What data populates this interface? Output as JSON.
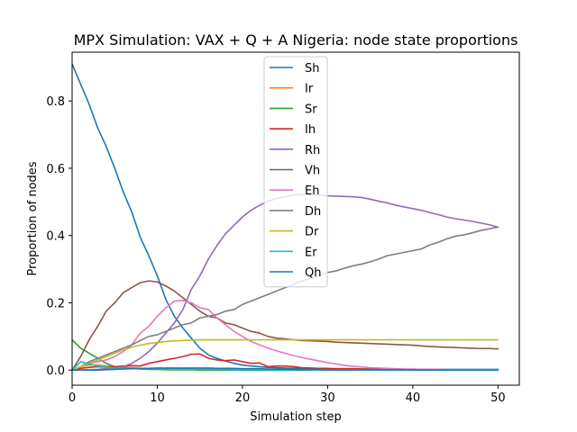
{
  "chart_data": {
    "type": "line",
    "title": "MPX Simulation: VAX + Q + A Nigeria: node state proportions",
    "xlabel": "Simulation step",
    "ylabel": "Proportion of nodes",
    "xlim": [
      0,
      52.5
    ],
    "ylim": [
      -0.045,
      0.945
    ],
    "xticks": [
      0,
      10,
      20,
      30,
      40,
      50
    ],
    "yticks": [
      0.0,
      0.2,
      0.4,
      0.6,
      0.8
    ],
    "xtick_labels": [
      "0",
      "10",
      "20",
      "30",
      "40",
      "50"
    ],
    "ytick_labels": [
      "0.0",
      "0.2",
      "0.4",
      "0.6",
      "0.8"
    ],
    "grid": false,
    "legend_position": "upper-center",
    "x": [
      0,
      1,
      2,
      3,
      4,
      5,
      6,
      7,
      8,
      9,
      10,
      11,
      12,
      13,
      14,
      15,
      16,
      17,
      18,
      19,
      20,
      21,
      22,
      23,
      24,
      25,
      26,
      27,
      28,
      29,
      30,
      31,
      32,
      33,
      34,
      35,
      36,
      37,
      38,
      39,
      40,
      41,
      42,
      43,
      44,
      45,
      46,
      47,
      48,
      49,
      50
    ],
    "series": [
      {
        "name": "Sh",
        "color": "#1f77b4",
        "values": [
          0.91,
          0.85,
          0.79,
          0.72,
          0.665,
          0.6,
          0.53,
          0.47,
          0.395,
          0.34,
          0.28,
          0.21,
          0.16,
          0.125,
          0.095,
          0.065,
          0.045,
          0.035,
          0.027,
          0.02,
          0.015,
          0.012,
          0.01,
          0.008,
          0.007,
          0.006,
          0.005,
          0.005,
          0.004,
          0.004,
          0.004,
          0.003,
          0.003,
          0.003,
          0.003,
          0.003,
          0.003,
          0.003,
          0.002,
          0.002,
          0.002,
          0.002,
          0.002,
          0.002,
          0.002,
          0.002,
          0.002,
          0.002,
          0.002,
          0.002,
          0.002
        ]
      },
      {
        "name": "Ir",
        "color": "#ff7f0e",
        "values": [
          0.0,
          0.01,
          0.015,
          0.015,
          0.012,
          0.01,
          0.008,
          0.007,
          0.005,
          0.004,
          0.004,
          0.003,
          0.003,
          0.002,
          0.002,
          0.002,
          0.002,
          0.001,
          0.001,
          0.001,
          0.001,
          0.001,
          0.001,
          0.001,
          0.001,
          0.0,
          0.0,
          0.0,
          0.0,
          0.0,
          0.0,
          0.0,
          0.0,
          0.0,
          0.0,
          0.0,
          0.0,
          0.0,
          0.0,
          0.0,
          0.0,
          0.0,
          0.0,
          0.0,
          0.0,
          0.0,
          0.0,
          0.0,
          0.0,
          0.0,
          0.0
        ]
      },
      {
        "name": "Sr",
        "color": "#2ca02c",
        "values": [
          0.09,
          0.065,
          0.05,
          0.035,
          0.02,
          0.01,
          0.007,
          0.005,
          0.003,
          0.002,
          0.002,
          0.001,
          0.001,
          0.001,
          0.001,
          0.0,
          0.0,
          0.0,
          0.0,
          0.0,
          0.0,
          0.0,
          0.0,
          0.0,
          0.0,
          0.0,
          0.0,
          0.0,
          0.0,
          0.0,
          0.0,
          0.0,
          0.0,
          0.0,
          0.0,
          0.0,
          0.0,
          0.0,
          0.0,
          0.0,
          0.0,
          0.0,
          0.0,
          0.0,
          0.0,
          0.0,
          0.0,
          0.0,
          0.0,
          0.0,
          0.0
        ]
      },
      {
        "name": "Ih",
        "color": "#d62728",
        "values": [
          0.0,
          0.005,
          0.008,
          0.01,
          0.008,
          0.01,
          0.012,
          0.013,
          0.012,
          0.02,
          0.025,
          0.03,
          0.035,
          0.04,
          0.047,
          0.048,
          0.035,
          0.03,
          0.028,
          0.03,
          0.025,
          0.02,
          0.021,
          0.01,
          0.012,
          0.012,
          0.01,
          0.007,
          0.006,
          0.005,
          0.005,
          0.004,
          0.004,
          0.004,
          0.003,
          0.003,
          0.003,
          0.002,
          0.002,
          0.002,
          0.002,
          0.002,
          0.002,
          0.001,
          0.001,
          0.001,
          0.001,
          0.001,
          0.001,
          0.001,
          0.001
        ]
      },
      {
        "name": "Rh",
        "color": "#9467bd",
        "values": [
          0.0,
          0.0,
          0.001,
          0.002,
          0.004,
          0.006,
          0.01,
          0.02,
          0.035,
          0.055,
          0.08,
          0.11,
          0.14,
          0.18,
          0.24,
          0.28,
          0.33,
          0.37,
          0.405,
          0.43,
          0.455,
          0.475,
          0.49,
          0.502,
          0.51,
          0.515,
          0.52,
          0.522,
          0.521,
          0.52,
          0.518,
          0.517,
          0.516,
          0.515,
          0.513,
          0.508,
          0.502,
          0.497,
          0.49,
          0.485,
          0.48,
          0.475,
          0.468,
          0.462,
          0.455,
          0.45,
          0.446,
          0.442,
          0.437,
          0.432,
          0.425
        ]
      },
      {
        "name": "Vh",
        "color": "#8c564b",
        "values": [
          0.0,
          0.04,
          0.09,
          0.13,
          0.175,
          0.2,
          0.23,
          0.245,
          0.26,
          0.265,
          0.262,
          0.25,
          0.235,
          0.215,
          0.195,
          0.175,
          0.16,
          0.155,
          0.14,
          0.135,
          0.125,
          0.115,
          0.11,
          0.1,
          0.095,
          0.093,
          0.09,
          0.088,
          0.087,
          0.086,
          0.085,
          0.083,
          0.082,
          0.081,
          0.08,
          0.079,
          0.078,
          0.077,
          0.076,
          0.075,
          0.074,
          0.072,
          0.07,
          0.069,
          0.068,
          0.067,
          0.066,
          0.065,
          0.064,
          0.064,
          0.063
        ]
      },
      {
        "name": "Eh",
        "color": "#e377c2",
        "values": [
          0.0,
          0.01,
          0.02,
          0.025,
          0.03,
          0.04,
          0.055,
          0.075,
          0.11,
          0.13,
          0.16,
          0.185,
          0.205,
          0.207,
          0.2,
          0.185,
          0.18,
          0.155,
          0.135,
          0.115,
          0.1,
          0.085,
          0.075,
          0.065,
          0.057,
          0.05,
          0.043,
          0.037,
          0.032,
          0.027,
          0.022,
          0.018,
          0.014,
          0.011,
          0.009,
          0.007,
          0.006,
          0.005,
          0.004,
          0.003,
          0.003,
          0.002,
          0.002,
          0.002,
          0.001,
          0.001,
          0.001,
          0.001,
          0.001,
          0.001,
          0.001
        ]
      },
      {
        "name": "Dh",
        "color": "#7f7f7f",
        "values": [
          0.0,
          0.01,
          0.025,
          0.035,
          0.045,
          0.055,
          0.065,
          0.075,
          0.088,
          0.1,
          0.105,
          0.115,
          0.125,
          0.135,
          0.14,
          0.155,
          0.16,
          0.165,
          0.175,
          0.18,
          0.195,
          0.205,
          0.215,
          0.225,
          0.235,
          0.245,
          0.255,
          0.265,
          0.272,
          0.28,
          0.29,
          0.295,
          0.303,
          0.31,
          0.315,
          0.322,
          0.33,
          0.34,
          0.345,
          0.35,
          0.355,
          0.36,
          0.372,
          0.38,
          0.39,
          0.398,
          0.402,
          0.408,
          0.415,
          0.42,
          0.425
        ]
      },
      {
        "name": "Dr",
        "color": "#bcbd22",
        "values": [
          0.0,
          0.01,
          0.02,
          0.03,
          0.04,
          0.05,
          0.06,
          0.068,
          0.074,
          0.079,
          0.082,
          0.085,
          0.087,
          0.088,
          0.089,
          0.09,
          0.09,
          0.09,
          0.09,
          0.09,
          0.09,
          0.09,
          0.09,
          0.09,
          0.09,
          0.09,
          0.09,
          0.09,
          0.09,
          0.09,
          0.09,
          0.09,
          0.09,
          0.09,
          0.09,
          0.09,
          0.09,
          0.09,
          0.09,
          0.09,
          0.09,
          0.09,
          0.09,
          0.09,
          0.09,
          0.09,
          0.09,
          0.09,
          0.09,
          0.09,
          0.09
        ]
      },
      {
        "name": "Er",
        "color": "#17becf",
        "values": [
          0.0,
          0.025,
          0.018,
          0.012,
          0.008,
          0.006,
          0.005,
          0.005,
          0.004,
          0.004,
          0.004,
          0.003,
          0.003,
          0.003,
          0.003,
          0.002,
          0.002,
          0.002,
          0.002,
          0.001,
          0.001,
          0.001,
          0.001,
          0.001,
          0.001,
          0.001,
          0.001,
          0.001,
          0.0,
          0.0,
          0.0,
          0.0,
          0.0,
          0.0,
          0.0,
          0.0,
          0.0,
          0.0,
          0.0,
          0.0,
          0.0,
          0.0,
          0.0,
          0.0,
          0.0,
          0.0,
          0.0,
          0.0,
          0.0,
          0.0,
          0.0
        ]
      },
      {
        "name": "Qh",
        "color": "#1f77b4",
        "values": [
          0.0,
          0.0,
          0.0,
          0.0,
          0.001,
          0.002,
          0.003,
          0.004,
          0.005,
          0.005,
          0.006,
          0.006,
          0.006,
          0.006,
          0.006,
          0.006,
          0.006,
          0.005,
          0.005,
          0.005,
          0.004,
          0.004,
          0.004,
          0.003,
          0.003,
          0.003,
          0.002,
          0.002,
          0.002,
          0.002,
          0.001,
          0.001,
          0.001,
          0.001,
          0.001,
          0.001,
          0.001,
          0.001,
          0.001,
          0.001,
          0.001,
          0.0,
          0.0,
          0.0,
          0.0,
          0.0,
          0.0,
          0.0,
          0.0,
          0.0,
          0.0
        ]
      }
    ]
  }
}
